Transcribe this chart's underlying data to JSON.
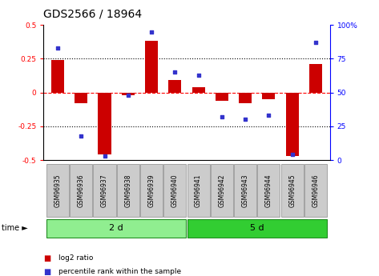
{
  "title": "GDS2566 / 18964",
  "samples": [
    "GSM96935",
    "GSM96936",
    "GSM96937",
    "GSM96938",
    "GSM96939",
    "GSM96940",
    "GSM96941",
    "GSM96942",
    "GSM96943",
    "GSM96944",
    "GSM96945",
    "GSM96946"
  ],
  "log2_ratio": [
    0.24,
    -0.08,
    -0.46,
    -0.02,
    0.38,
    0.09,
    0.04,
    -0.06,
    -0.08,
    -0.05,
    -0.47,
    0.21
  ],
  "percentile_rank": [
    83,
    18,
    3,
    48,
    95,
    65,
    63,
    32,
    30,
    33,
    4,
    87
  ],
  "groups": [
    {
      "label": "2 d",
      "start": 0,
      "end": 6,
      "color": "#90EE90"
    },
    {
      "label": "5 d",
      "start": 6,
      "end": 12,
      "color": "#32CD32"
    }
  ],
  "ylim_left": [
    -0.5,
    0.5
  ],
  "ylim_right": [
    0,
    100
  ],
  "yticks_left": [
    -0.5,
    -0.25,
    0,
    0.25,
    0.5
  ],
  "yticks_right": [
    0,
    25,
    50,
    75,
    100
  ],
  "hlines_dotted": [
    0.25,
    -0.25
  ],
  "hline_zero": 0,
  "bar_color": "#CC0000",
  "dot_color": "#3333CC",
  "bar_width": 0.55,
  "time_label": "time",
  "legend_log2": "log2 ratio",
  "legend_pct": "percentile rank within the sample",
  "title_fontsize": 10,
  "tick_fontsize": 6.5,
  "sample_fontsize": 5.5,
  "group_fontsize": 8
}
